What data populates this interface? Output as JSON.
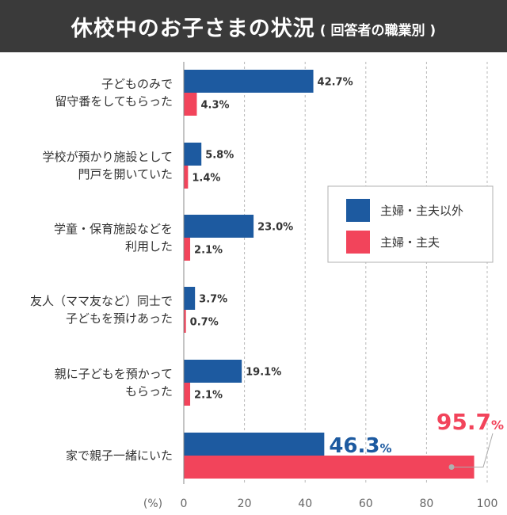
{
  "header": {
    "title": "休校中のお子さまの状況",
    "subtitle": "( 回答者の職業別 )"
  },
  "colors": {
    "series1": "#1d5aa0",
    "series2": "#f2445b",
    "header_bg": "#3a3a3a"
  },
  "chart_data": {
    "type": "bar",
    "orientation": "horizontal",
    "title": "休校中のお子さまの状況",
    "subtitle": "( 回答者の職業別 )",
    "categories": [
      [
        "子どものみで",
        "留守番をしてもらった"
      ],
      [
        "学校が預かり施設として",
        "門戸を開いていた"
      ],
      [
        "学童・保育施設などを",
        "利用した"
      ],
      [
        "友人（ママ友など）同士で",
        "子どもを預けあった"
      ],
      [
        "親に子どもを預かって",
        "もらった"
      ],
      [
        "家で親子一緒にいた"
      ]
    ],
    "series": [
      {
        "name": "主婦・主夫以外",
        "values": [
          42.7,
          5.8,
          23.0,
          3.7,
          19.1,
          46.3
        ],
        "labels": [
          "42.7%",
          "5.8%",
          "23.0%",
          "3.7%",
          "19.1%",
          "46.3%"
        ]
      },
      {
        "name": "主婦・主夫",
        "values": [
          4.3,
          1.4,
          2.1,
          0.7,
          2.1,
          95.7
        ],
        "labels": [
          "4.3%",
          "1.4%",
          "2.1%",
          "0.7%",
          "2.1%",
          "95.7%"
        ]
      }
    ],
    "highlight": {
      "category_index": 5,
      "value1": "46.3",
      "value2": "95.7",
      "unit": "%"
    },
    "xlim": [
      0,
      100
    ],
    "xticks": [
      0,
      20,
      40,
      60,
      80,
      100
    ],
    "xunit_label": "(%)",
    "grid": true,
    "legend_position": "right"
  }
}
